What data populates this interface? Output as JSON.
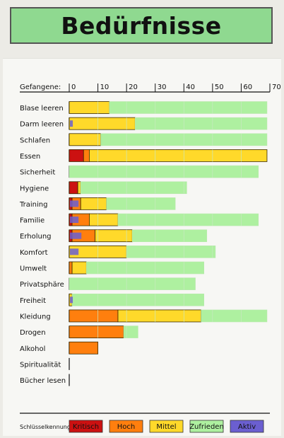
{
  "title": "Bedürfnisse",
  "axis_label": "Gefangene:",
  "legend": {
    "title": "Schlüsselkennung",
    "items": [
      {
        "key": "kritisch",
        "label": "Kritisch",
        "color": "#cc1111"
      },
      {
        "key": "hoch",
        "label": "Hoch",
        "color": "#ff7f0e"
      },
      {
        "key": "mittel",
        "label": "Mittel",
        "color": "#ffd92a"
      },
      {
        "key": "zufrieden",
        "label": "Zufrieden",
        "color": "#aef0a0"
      },
      {
        "key": "aktiv",
        "label": "Aktiv",
        "color": "#6b5fd0"
      }
    ]
  },
  "chart_data": {
    "type": "bar",
    "orientation": "horizontal",
    "stacked": true,
    "xlim": [
      0,
      70
    ],
    "xticks": [
      0,
      10,
      20,
      30,
      40,
      50,
      60,
      70
    ],
    "categories": [
      "Blase leeren",
      "Darm leeren",
      "Schlafen",
      "Essen",
      "Sicherheit",
      "Hygiene",
      "Training",
      "Familie",
      "Erholung",
      "Komfort",
      "Umwelt",
      "Privatsphäre",
      "Freiheit",
      "Kleidung",
      "Drogen",
      "Alkohol",
      "Spiritualität",
      "Bücher lesen"
    ],
    "series": [
      {
        "name": "Kritisch",
        "key": "kritisch",
        "values": [
          0,
          0,
          0,
          5,
          0,
          3,
          1,
          1,
          1,
          0,
          0,
          0,
          0,
          0,
          0,
          0,
          0,
          0
        ]
      },
      {
        "name": "Hoch",
        "key": "hoch",
        "values": [
          0,
          0,
          0,
          2,
          0,
          0,
          3,
          6,
          8,
          0,
          1,
          0,
          0,
          17,
          19,
          10,
          0,
          0
        ]
      },
      {
        "name": "Mittel",
        "key": "mittel",
        "values": [
          14,
          23,
          11,
          62,
          0,
          1,
          9,
          10,
          13,
          20,
          5,
          0,
          1,
          29,
          0,
          0,
          0,
          0
        ]
      },
      {
        "name": "Zufrieden",
        "key": "zufrieden",
        "values": [
          55,
          46,
          58,
          0,
          66,
          37,
          24,
          49,
          26,
          31,
          41,
          44,
          46,
          23,
          5,
          0,
          0,
          0
        ]
      }
    ],
    "aktiv": [
      0,
      1,
      0,
      0,
      0,
      0,
      3,
      3,
      4,
      3,
      0,
      0,
      1,
      0,
      0,
      0,
      0,
      0
    ]
  }
}
